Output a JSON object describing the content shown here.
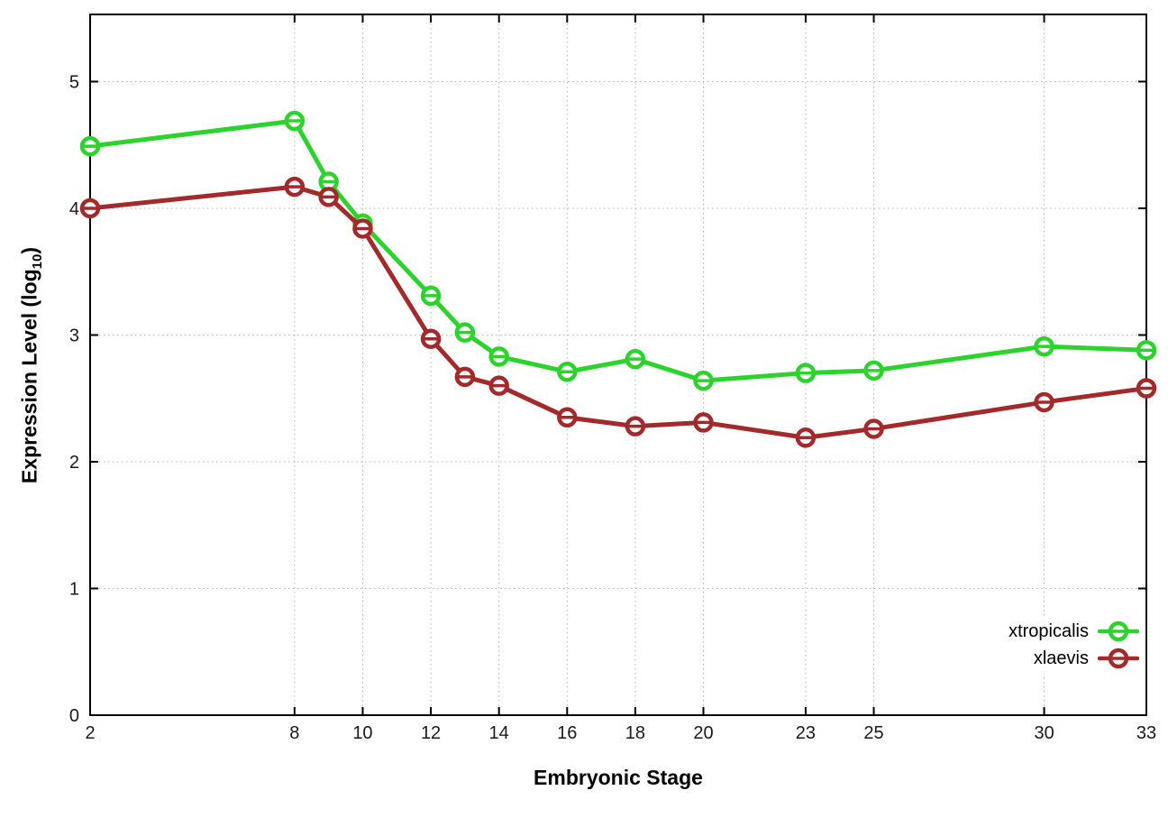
{
  "figure": {
    "background": "#ffffff",
    "border_color": "#000000",
    "grid_color": "#b5b5b5",
    "tick_label_color": "#1a1a1a"
  },
  "chart_data": {
    "type": "line",
    "title": "",
    "xlabel": "Embryonic Stage",
    "ylabel": "Expression Level (log10)",
    "ylabel_parts": {
      "pre": "Expression Level (log",
      "sub": "10",
      "post": ")"
    },
    "x": [
      2,
      8,
      9,
      10,
      12,
      13,
      14,
      16,
      18,
      20,
      23,
      25,
      30,
      33
    ],
    "xticks": [
      2,
      8,
      10,
      12,
      14,
      16,
      18,
      20,
      23,
      25,
      30,
      33
    ],
    "yticks": [
      0,
      1,
      2,
      3,
      4,
      5
    ],
    "xlim": [
      2,
      33
    ],
    "ylim": [
      0,
      5.53
    ],
    "grid": true,
    "marker": "open-circle-with-errorbar-cap",
    "legend_position": "bottom-right-inside",
    "series": [
      {
        "name": "xtropicalis",
        "color": "#2cd32c",
        "values": [
          4.49,
          4.69,
          4.21,
          3.88,
          3.31,
          3.02,
          2.83,
          2.71,
          2.81,
          2.64,
          2.7,
          2.72,
          2.91,
          2.88
        ]
      },
      {
        "name": "xlaevis",
        "color": "#a32a2a",
        "values": [
          4.0,
          4.17,
          4.09,
          3.84,
          2.97,
          2.67,
          2.6,
          2.35,
          2.28,
          2.31,
          2.19,
          2.26,
          2.47,
          2.58
        ]
      }
    ]
  }
}
